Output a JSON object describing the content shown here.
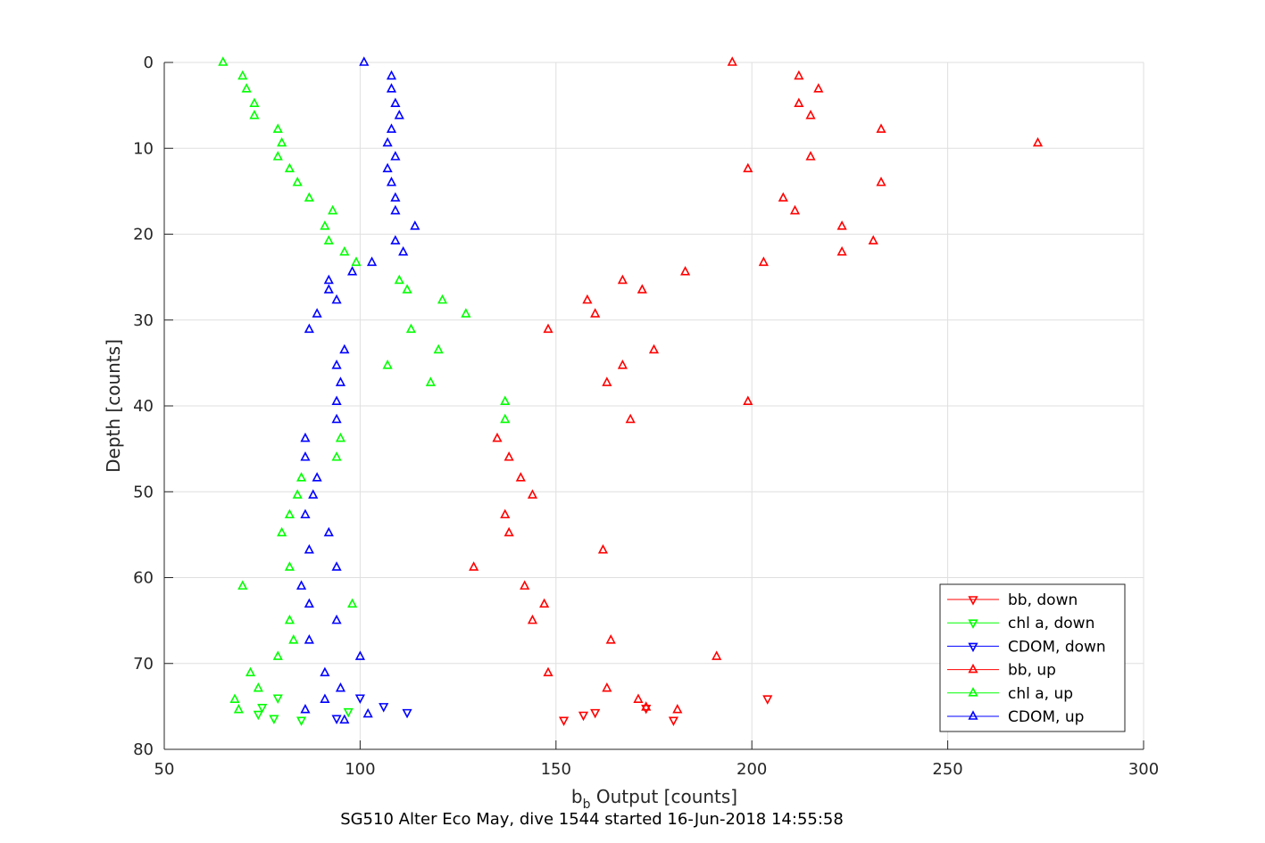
{
  "caption": "SG510 Alter Eco May, dive 1544 started 16-Jun-2018 14:55:58",
  "chart_data": {
    "type": "scatter",
    "xlabel_main": "b",
    "xlabel_sub": "b",
    "xlabel_rest": " Output [counts]",
    "ylabel": "Depth [counts]",
    "xlim": [
      50,
      300
    ],
    "ylim": [
      80,
      0
    ],
    "y_reversed": true,
    "xticks": [
      50,
      100,
      150,
      200,
      250,
      300
    ],
    "yticks": [
      0,
      10,
      20,
      30,
      40,
      50,
      60,
      70,
      80
    ],
    "grid": true,
    "legend_position": "bottom-right",
    "series": [
      {
        "name": "bb, down",
        "color": "#ff0000",
        "marker": "triangle-down",
        "points": [
          [
            152,
            76.6
          ],
          [
            157,
            76.0
          ],
          [
            160,
            75.7
          ],
          [
            173,
            75.2
          ],
          [
            180,
            76.6
          ],
          [
            204,
            74.1
          ]
        ]
      },
      {
        "name": "chl a, down",
        "color": "#00ff00",
        "marker": "triangle-down",
        "points": [
          [
            74,
            75.9
          ],
          [
            75,
            75.1
          ],
          [
            78,
            76.4
          ],
          [
            79,
            74.0
          ],
          [
            85,
            76.6
          ],
          [
            97,
            75.6
          ]
        ]
      },
      {
        "name": "CDOM, down",
        "color": "#0000ff",
        "marker": "triangle-down",
        "points": [
          [
            94,
            76.4
          ],
          [
            100,
            74.0
          ],
          [
            106,
            75.0
          ],
          [
            112,
            75.7
          ]
        ]
      },
      {
        "name": "bb, up",
        "color": "#ff0000",
        "marker": "triangle-up",
        "points": [
          [
            195,
            0.0
          ],
          [
            212,
            1.6
          ],
          [
            217,
            3.1
          ],
          [
            212,
            4.8
          ],
          [
            215,
            6.2
          ],
          [
            233,
            7.8
          ],
          [
            273,
            9.4
          ],
          [
            215,
            11.0
          ],
          [
            199,
            12.4
          ],
          [
            233,
            14.0
          ],
          [
            208,
            15.8
          ],
          [
            211,
            17.3
          ],
          [
            223,
            19.1
          ],
          [
            231,
            20.8
          ],
          [
            223,
            22.1
          ],
          [
            203,
            23.3
          ],
          [
            183,
            24.4
          ],
          [
            167,
            25.4
          ],
          [
            172,
            26.5
          ],
          [
            158,
            27.7
          ],
          [
            160,
            29.3
          ],
          [
            148,
            31.1
          ],
          [
            175,
            33.5
          ],
          [
            167,
            35.3
          ],
          [
            163,
            37.3
          ],
          [
            199,
            39.5
          ],
          [
            169,
            41.6
          ],
          [
            135,
            43.8
          ],
          [
            138,
            46.0
          ],
          [
            141,
            48.4
          ],
          [
            144,
            50.4
          ],
          [
            137,
            52.7
          ],
          [
            138,
            54.8
          ],
          [
            162,
            56.8
          ],
          [
            129,
            58.8
          ],
          [
            142,
            61.0
          ],
          [
            147,
            63.1
          ],
          [
            144,
            65.0
          ],
          [
            164,
            67.3
          ],
          [
            191,
            69.2
          ],
          [
            148,
            71.1
          ],
          [
            163,
            72.9
          ],
          [
            171,
            74.2
          ],
          [
            181,
            75.4
          ],
          [
            173,
            75.1
          ]
        ]
      },
      {
        "name": "chl a, up",
        "color": "#00ff00",
        "marker": "triangle-up",
        "points": [
          [
            65,
            0.0
          ],
          [
            70,
            1.6
          ],
          [
            71,
            3.1
          ],
          [
            73,
            4.8
          ],
          [
            73,
            6.2
          ],
          [
            79,
            7.8
          ],
          [
            80,
            9.4
          ],
          [
            79,
            11.0
          ],
          [
            82,
            12.4
          ],
          [
            84,
            14.0
          ],
          [
            87,
            15.8
          ],
          [
            93,
            17.3
          ],
          [
            91,
            19.1
          ],
          [
            92,
            20.8
          ],
          [
            96,
            22.1
          ],
          [
            99,
            23.3
          ],
          [
            110,
            25.4
          ],
          [
            112,
            26.5
          ],
          [
            121,
            27.7
          ],
          [
            127,
            29.3
          ],
          [
            113,
            31.1
          ],
          [
            120,
            33.5
          ],
          [
            107,
            35.3
          ],
          [
            118,
            37.3
          ],
          [
            137,
            39.5
          ],
          [
            137,
            41.6
          ],
          [
            95,
            43.8
          ],
          [
            94,
            46.0
          ],
          [
            85,
            48.4
          ],
          [
            84,
            50.4
          ],
          [
            82,
            52.7
          ],
          [
            80,
            54.8
          ],
          [
            82,
            58.8
          ],
          [
            70,
            61.0
          ],
          [
            98,
            63.1
          ],
          [
            82,
            65.0
          ],
          [
            83,
            67.3
          ],
          [
            79,
            69.2
          ],
          [
            72,
            71.1
          ],
          [
            74,
            72.9
          ],
          [
            68,
            74.2
          ],
          [
            69,
            75.4
          ]
        ]
      },
      {
        "name": "CDOM, up",
        "color": "#0000ff",
        "marker": "triangle-up",
        "points": [
          [
            101,
            0.0
          ],
          [
            108,
            1.6
          ],
          [
            108,
            3.1
          ],
          [
            109,
            4.8
          ],
          [
            110,
            6.2
          ],
          [
            108,
            7.8
          ],
          [
            107,
            9.4
          ],
          [
            109,
            11.0
          ],
          [
            107,
            12.4
          ],
          [
            108,
            14.0
          ],
          [
            109,
            15.8
          ],
          [
            109,
            17.3
          ],
          [
            114,
            19.1
          ],
          [
            109,
            20.8
          ],
          [
            111,
            22.1
          ],
          [
            103,
            23.3
          ],
          [
            98,
            24.4
          ],
          [
            92,
            25.4
          ],
          [
            92,
            26.5
          ],
          [
            94,
            27.7
          ],
          [
            89,
            29.3
          ],
          [
            87,
            31.1
          ],
          [
            96,
            33.5
          ],
          [
            94,
            35.3
          ],
          [
            95,
            37.3
          ],
          [
            94,
            39.5
          ],
          [
            94,
            41.6
          ],
          [
            86,
            43.8
          ],
          [
            86,
            46.0
          ],
          [
            89,
            48.4
          ],
          [
            88,
            50.4
          ],
          [
            86,
            52.7
          ],
          [
            92,
            54.8
          ],
          [
            87,
            56.8
          ],
          [
            94,
            58.8
          ],
          [
            85,
            61.0
          ],
          [
            87,
            63.1
          ],
          [
            94,
            65.0
          ],
          [
            87,
            67.3
          ],
          [
            100,
            69.2
          ],
          [
            91,
            71.1
          ],
          [
            95,
            72.9
          ],
          [
            91,
            74.2
          ],
          [
            86,
            75.4
          ],
          [
            102,
            75.9
          ],
          [
            96,
            76.6
          ]
        ]
      }
    ]
  }
}
